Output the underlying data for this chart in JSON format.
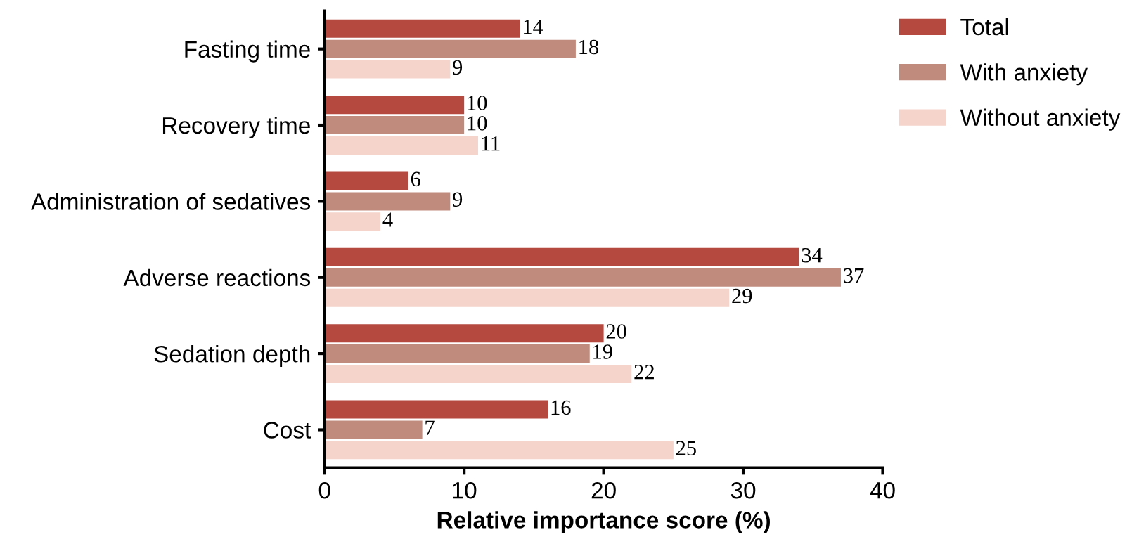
{
  "chart_data": {
    "type": "bar",
    "orientation": "horizontal",
    "categories": [
      "Fasting time",
      "Recovery time",
      "Administration of sedatives",
      "Adverse reactions",
      "Sedation depth",
      "Cost"
    ],
    "series": [
      {
        "name": "Total",
        "color": "#b5483f",
        "values": [
          14,
          10,
          6,
          34,
          20,
          16
        ]
      },
      {
        "name": "With anxiety",
        "color": "#c08b7c",
        "values": [
          18,
          10,
          9,
          37,
          19,
          7
        ]
      },
      {
        "name": "Without anxiety",
        "color": "#f5d4cb",
        "values": [
          9,
          11,
          4,
          29,
          22,
          25
        ]
      }
    ],
    "xlabel": "Relative importance score (%)",
    "xlim": [
      0,
      40
    ],
    "xticks": [
      0,
      10,
      20,
      30,
      40
    ],
    "data_labels": true,
    "legend": "top right",
    "grid": false
  }
}
